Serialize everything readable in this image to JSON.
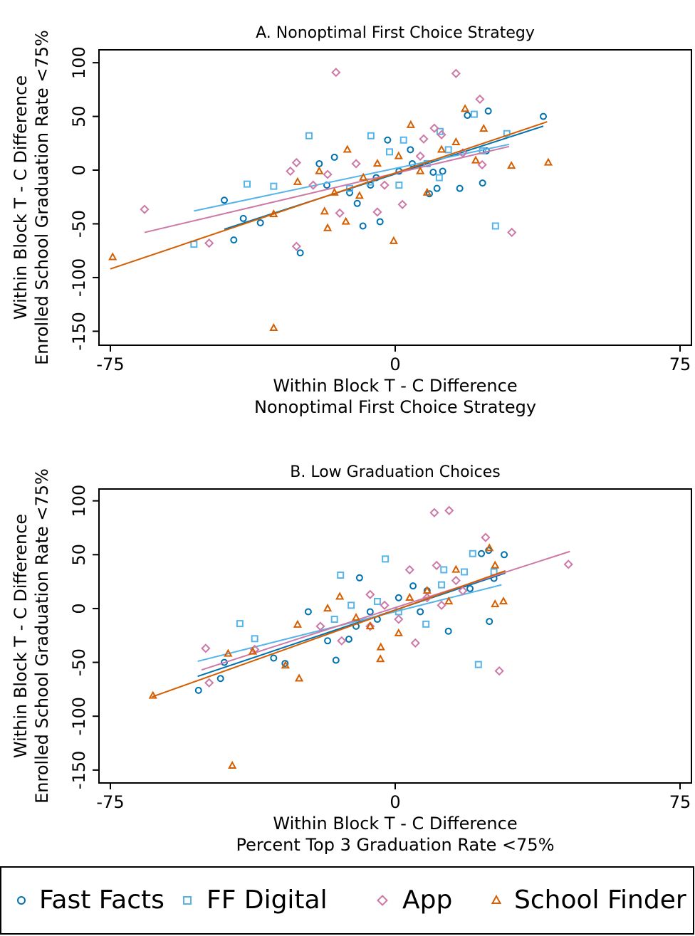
{
  "chart_data": [
    {
      "type": "scatter",
      "title": "A. Nonoptimal First Choice Strategy",
      "xlabel": [
        "Within Block T - C Difference",
        "Nonoptimal First Choice Strategy"
      ],
      "ylabel": [
        "Within Block T - C Difference",
        "Enrolled School Graduation Rate <75%"
      ],
      "xlim": [
        -78,
        78
      ],
      "xticks": [
        -75,
        0,
        75
      ],
      "ylim": [
        -163,
        112
      ],
      "yticks": [
        -150,
        -100,
        -50,
        0,
        50,
        100
      ],
      "legend": "bottom",
      "series": [
        {
          "name": "Fast Facts",
          "color": "#0072b2",
          "marker": "circle",
          "x": [
            -45,
            -40,
            -42.5,
            -35.5,
            -25,
            -16,
            -8.5,
            -4,
            -2,
            19,
            24.5,
            39,
            17,
            23,
            9,
            11,
            12.5,
            10,
            -12,
            -10,
            4.5,
            1,
            -5,
            -6.5,
            4,
            24,
            -18,
            -20
          ],
          "values": [
            -28,
            -45,
            -65,
            -49,
            -77,
            12,
            -52,
            -48,
            28,
            51,
            55,
            50,
            -17,
            -12,
            -22,
            -17,
            -1,
            -2,
            -21,
            -31,
            6,
            -1,
            -7,
            -14,
            19,
            18,
            -14,
            6
          ],
          "fit": {
            "x": [
              -45,
              39
            ],
            "values": [
              -55,
              41
            ]
          }
        },
        {
          "name": "FF Digital",
          "color": "#56b4e9",
          "marker": "square",
          "x": [
            -53,
            -39,
            -32,
            -22.7,
            -6.4,
            2.2,
            11.8,
            20.8,
            26.4,
            29.4,
            23,
            14,
            -1.5,
            8.4,
            -6.6,
            -12,
            1,
            11.6
          ],
          "values": [
            -69,
            -13,
            -15,
            32,
            32,
            28,
            36,
            52,
            -52,
            34,
            18,
            19,
            17,
            6,
            -11,
            -17,
            -14,
            -7
          ],
          "fit": {
            "x": [
              -53,
              30
            ],
            "values": [
              -38,
              24
            ]
          }
        },
        {
          "name": "App",
          "color": "#cc79a7",
          "marker": "diamond",
          "x": [
            -66,
            -49,
            -26,
            -15.6,
            16,
            22.3,
            30.7,
            -27.6,
            -26,
            -21.6,
            -4.7,
            1.9,
            10.3,
            7.5,
            17.8,
            22.9,
            -10.3,
            -14.6,
            6.6,
            -2.8,
            -17.8,
            12.2
          ],
          "values": [
            -36.5,
            -68,
            -71,
            91,
            90,
            66,
            -58,
            -1,
            7,
            -14,
            -39,
            -32,
            39,
            29,
            16,
            5,
            6,
            -40,
            13,
            -14,
            -4,
            33
          ],
          "fit": {
            "x": [
              -66,
              30
            ],
            "values": [
              -58,
              22
            ]
          }
        },
        {
          "name": "School Finder",
          "color": "#d55e00",
          "marker": "triangle",
          "x": [
            -74.4,
            -32,
            -32,
            -18.6,
            -17.8,
            -0.4,
            -13,
            -12.6,
            4.1,
            18.4,
            23.3,
            30.6,
            40.3,
            21.2,
            8.4,
            -20,
            -16,
            -8.4,
            -4.7,
            0.9,
            12.2,
            16,
            -9.4,
            6.6,
            -25.7
          ],
          "values": [
            -81,
            -147,
            -41,
            -38.5,
            -54,
            -66,
            -48,
            19,
            42,
            57,
            38.5,
            4,
            7,
            9,
            -21,
            -1,
            -21,
            -7,
            6,
            13,
            19,
            26,
            -24,
            -1,
            -11
          ],
          "fit": {
            "x": [
              -75,
              40
            ],
            "values": [
              -92,
              45
            ]
          }
        }
      ]
    },
    {
      "type": "scatter",
      "title": "B. Low Graduation Choices",
      "xlabel": [
        "Within Block T - C Difference",
        "Percent Top 3 Graduation Rate <75%"
      ],
      "ylabel": [
        "Within Block T - C Difference",
        "Enrolled School Graduation Rate <75%"
      ],
      "xlim": [
        -78,
        78
      ],
      "xticks": [
        -75,
        0,
        75
      ],
      "ylim": [
        -162,
        111
      ],
      "yticks": [
        -150,
        -100,
        -50,
        0,
        50,
        100
      ],
      "series": [
        {
          "name": "Fast Facts",
          "color": "#0072b2",
          "marker": "circle",
          "x": [
            -51.8,
            -46,
            -45,
            -32,
            -29,
            -15.6,
            -22.9,
            -9.4,
            14,
            22.7,
            24.6,
            28.7,
            24.8,
            26,
            19.7,
            6.6,
            -4.7,
            -10.3,
            -17.8,
            0.9,
            8.4,
            4.7,
            -12.2,
            -6.6
          ],
          "values": [
            -76,
            -65,
            -50,
            -46,
            -51,
            -48,
            -3,
            28.5,
            -21,
            51,
            54,
            50,
            -12,
            28,
            18.5,
            -3,
            -10,
            -16.5,
            -30,
            10,
            16.5,
            21,
            -28.5,
            -3
          ],
          "fit": {
            "x": [
              -52,
              29
            ],
            "values": [
              -63,
              33
            ]
          }
        },
        {
          "name": "FF Digital",
          "color": "#56b4e9",
          "marker": "square",
          "x": [
            -40.9,
            -37,
            -14.4,
            -2.6,
            12.8,
            18.2,
            20.4,
            21.9,
            26,
            8.1,
            0.9,
            -11.6,
            -4.7,
            12.2,
            -16
          ],
          "values": [
            -14,
            -28,
            31,
            46,
            36,
            34,
            51,
            -52,
            34,
            -14.5,
            -3,
            3,
            6.6,
            22,
            -10
          ],
          "fit": {
            "x": [
              -52,
              28
            ],
            "values": [
              -49,
              22
            ]
          }
        },
        {
          "name": "App",
          "color": "#cc79a7",
          "marker": "diamond",
          "x": [
            -49.9,
            -49,
            -37,
            10.3,
            14.2,
            23.8,
            27.4,
            45.6,
            3.8,
            5.3,
            10.9,
            16,
            -6.6,
            -14.1,
            -2.8,
            8.4,
            17.8,
            0.9,
            12.2,
            -19.7,
            -6.6
          ],
          "values": [
            -37,
            -69,
            -38,
            89,
            91,
            66,
            -58,
            41,
            36,
            -32,
            40,
            26,
            -16.5,
            -30,
            3,
            10,
            16.5,
            -10,
            3,
            -16.5,
            13
          ],
          "fit": {
            "x": [
              -51,
              46
            ],
            "values": [
              -57,
              53
            ]
          }
        },
        {
          "name": "School Finder",
          "color": "#d55e00",
          "marker": "triangle",
          "x": [
            -63.8,
            -42.9,
            -44,
            -37.5,
            -25.3,
            -28.9,
            -3.8,
            -3.9,
            24.8,
            26.3,
            28.5,
            26.3,
            -14.6,
            -17.8,
            0.9,
            8.4,
            14.1,
            -10.3,
            -6.6,
            -25.7,
            16,
            3.8
          ],
          "values": [
            -81,
            -146,
            -42,
            -40,
            -65,
            -53,
            -36,
            -47,
            56,
            40,
            6.6,
            4,
            11,
            0,
            -23,
            16.5,
            6.6,
            -8.6,
            -16.5,
            -15,
            36,
            10
          ],
          "fit": {
            "x": [
              -64,
              29
            ],
            "values": [
              -82,
              35
            ]
          }
        }
      ]
    }
  ]
}
